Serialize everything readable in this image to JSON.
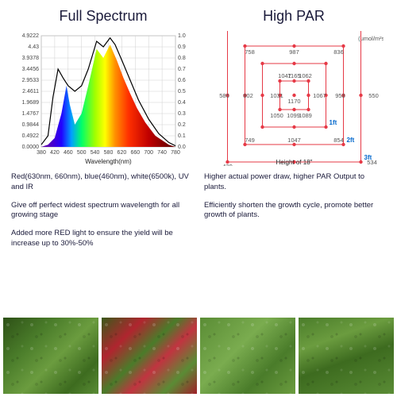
{
  "left": {
    "title": "Full Spectrum",
    "chart": {
      "type": "spectrum-area",
      "xlabel": "Wavelength(nm)",
      "xlim": [
        380,
        780
      ],
      "xtick_step": 40,
      "y_left_max": 4.9222,
      "y_left_ticks": [
        0,
        0.4922,
        0.9844,
        1.4767,
        1.9689,
        2.4611,
        2.9533,
        3.4456,
        3.9378,
        4.43,
        4.9222
      ],
      "y_right_max": 1.0,
      "y_right_tick_step": 0.1,
      "grid_color": "#d0d0d0",
      "axis_color": "#444444",
      "background_color": "#ffffff",
      "spectrum_stops": [
        {
          "nm": 400,
          "color": "#5b00b5"
        },
        {
          "nm": 440,
          "color": "#2200ff"
        },
        {
          "nm": 470,
          "color": "#00a0ff"
        },
        {
          "nm": 500,
          "color": "#00ff6a"
        },
        {
          "nm": 540,
          "color": "#a0ff00"
        },
        {
          "nm": 570,
          "color": "#ffff00"
        },
        {
          "nm": 600,
          "color": "#ff9000"
        },
        {
          "nm": 640,
          "color": "#ff3000"
        },
        {
          "nm": 700,
          "color": "#c00000"
        },
        {
          "nm": 760,
          "color": "#700000"
        }
      ],
      "fill_curve": [
        {
          "nm": 380,
          "v": 0.0
        },
        {
          "nm": 400,
          "v": 0.02
        },
        {
          "nm": 420,
          "v": 0.08
        },
        {
          "nm": 440,
          "v": 0.3
        },
        {
          "nm": 455,
          "v": 0.55
        },
        {
          "nm": 465,
          "v": 0.38
        },
        {
          "nm": 480,
          "v": 0.2
        },
        {
          "nm": 500,
          "v": 0.3
        },
        {
          "nm": 520,
          "v": 0.55
        },
        {
          "nm": 545,
          "v": 0.88
        },
        {
          "nm": 565,
          "v": 0.8
        },
        {
          "nm": 585,
          "v": 0.92
        },
        {
          "nm": 605,
          "v": 0.78
        },
        {
          "nm": 625,
          "v": 0.62
        },
        {
          "nm": 645,
          "v": 0.48
        },
        {
          "nm": 665,
          "v": 0.35
        },
        {
          "nm": 690,
          "v": 0.22
        },
        {
          "nm": 720,
          "v": 0.1
        },
        {
          "nm": 760,
          "v": 0.02
        },
        {
          "nm": 780,
          "v": 0.0
        }
      ],
      "overlay_curve": [
        {
          "nm": 380,
          "v": 0.02
        },
        {
          "nm": 400,
          "v": 0.1
        },
        {
          "nm": 415,
          "v": 0.45
        },
        {
          "nm": 430,
          "v": 0.7
        },
        {
          "nm": 445,
          "v": 0.62
        },
        {
          "nm": 460,
          "v": 0.55
        },
        {
          "nm": 480,
          "v": 0.5
        },
        {
          "nm": 500,
          "v": 0.55
        },
        {
          "nm": 520,
          "v": 0.7
        },
        {
          "nm": 545,
          "v": 0.95
        },
        {
          "nm": 565,
          "v": 0.9
        },
        {
          "nm": 585,
          "v": 0.98
        },
        {
          "nm": 600,
          "v": 0.92
        },
        {
          "nm": 620,
          "v": 0.78
        },
        {
          "nm": 645,
          "v": 0.6
        },
        {
          "nm": 670,
          "v": 0.42
        },
        {
          "nm": 700,
          "v": 0.25
        },
        {
          "nm": 730,
          "v": 0.12
        },
        {
          "nm": 760,
          "v": 0.04
        },
        {
          "nm": 780,
          "v": 0.01
        }
      ],
      "overlay_color": "#000000",
      "overlay_width": 1.2
    },
    "bullets": [
      "Red(630nm, 660nm), blue(460nm), white(6500k), UV and IR",
      "Give off perfect  widest spectrum wavelength for all growing stage",
      "Added more RED light to ensure the yield will be increase up to 30%-50%"
    ]
  },
  "right": {
    "title": "High PAR",
    "chart": {
      "type": "nested-square-par",
      "unit_label": "(umol/m²s)",
      "footer": "Height of 18\"",
      "square_color": "#e63946",
      "point_color": "#e63946",
      "point_radius": 2.2,
      "ft_labels": [
        {
          "text": "1ft",
          "color": "#0066cc"
        },
        {
          "text": "2ft",
          "color": "#0066cc"
        },
        {
          "text": "3ft",
          "color": "#0066cc"
        }
      ],
      "squares_half": [
        18,
        40,
        62,
        84
      ],
      "values": {
        "center": 1170,
        "ring1": {
          "tl": 1165,
          "t": null,
          "tr": 1062,
          "r": 1067,
          "br": 1089,
          "b": 1099,
          "bl": 1050,
          "l": 1031,
          "tl2": 1047
        },
        "ring2": {
          "tl": 758,
          "t": 987,
          "tr": 836,
          "r": 958,
          "br": 854,
          "b": 1047,
          "bl": 749,
          "l": 802
        },
        "ring3": {
          "tl": 437,
          "t": 761,
          "tr": 493,
          "r": 550,
          "br": 534,
          "b": 831,
          "bl": 429,
          "l": 586
        }
      }
    },
    "bullets": [
      "Higher actual power draw, higher PAR Output to plants.",
      "Efficiently shorten the growth cycle, promote better growth of plants."
    ]
  }
}
